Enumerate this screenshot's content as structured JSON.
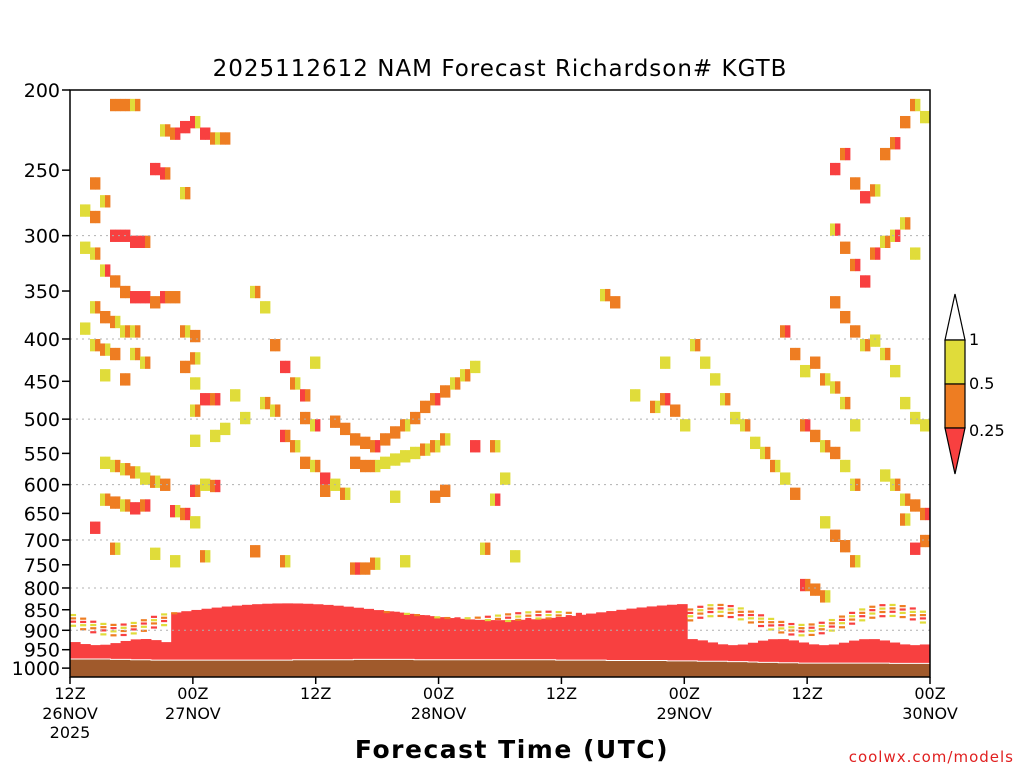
{
  "chart_data": {
    "type": "heatmap",
    "title": "2025112612 NAM Forecast Richardson# KGTB",
    "xlabel": "Forecast Time (UTC)",
    "ylabel": "",
    "watermark": "coolwx.com/models",
    "y_scale": "log",
    "ylim": [
      1025,
      200
    ],
    "xlim_hours": [
      0,
      84
    ],
    "y_ticks": [
      200,
      250,
      300,
      350,
      400,
      450,
      500,
      550,
      600,
      650,
      700,
      750,
      800,
      850,
      900,
      950,
      1000
    ],
    "y_tick_labels": [
      "200",
      "250",
      "300",
      "350",
      "400",
      "450",
      "500",
      "550",
      "600",
      "650",
      "700",
      "750",
      "800",
      "850",
      "900",
      "950",
      "1000"
    ],
    "x_ticks": [
      {
        "hour": 0,
        "time": "12Z",
        "date": "26NOV",
        "year": "2025"
      },
      {
        "hour": 12,
        "time": "00Z",
        "date": "27NOV",
        "year": ""
      },
      {
        "hour": 24,
        "time": "12Z",
        "date": "",
        "year": ""
      },
      {
        "hour": 36,
        "time": "00Z",
        "date": "28NOV",
        "year": ""
      },
      {
        "hour": 48,
        "time": "12Z",
        "date": "",
        "year": ""
      },
      {
        "hour": 60,
        "time": "00Z",
        "date": "29NOV",
        "year": ""
      },
      {
        "hour": 72,
        "time": "12Z",
        "date": "",
        "year": ""
      },
      {
        "hour": 84,
        "time": "00Z",
        "date": "30NOV",
        "year": ""
      }
    ],
    "grid": "dotted horizontal at 300, 400, 500, 600, 700, 800, 900",
    "legend": {
      "placement": "right",
      "boundaries": [
        "1",
        "0.5",
        "0.25"
      ],
      "bins": [
        {
          "range": "0.5 - 1",
          "color": "#e0dc3a"
        },
        {
          "range": "0.25 - 0.5",
          "color": "#ee7d22"
        },
        {
          "range": "< 0.25",
          "color": "#f84040"
        }
      ]
    },
    "colors": {
      "high": "#e0dc3a",
      "mid": "#ee7d22",
      "low": "#f84040",
      "ground": "#a05a2c"
    },
    "surface_pressure": [
      975,
      975,
      975,
      975,
      976,
      976,
      977,
      977,
      978,
      978,
      978,
      978,
      978,
      978,
      978,
      978,
      978,
      978,
      978,
      978,
      978,
      978,
      977,
      977,
      977,
      977,
      977,
      977,
      976,
      976,
      976,
      976,
      976,
      976,
      977,
      977,
      977,
      977,
      977,
      977,
      977,
      977,
      977,
      977,
      977,
      977,
      977,
      977,
      978,
      978,
      978,
      978,
      978,
      979,
      979,
      979,
      979,
      979,
      979,
      980,
      980,
      980,
      981,
      981,
      981,
      982,
      982,
      983,
      984,
      984,
      985,
      985,
      986,
      986,
      986,
      986,
      986,
      986,
      986,
      986,
      986,
      987,
      987,
      987,
      987
    ],
    "cells": [
      [
        4,
        205,
        1,
        1
      ],
      [
        5,
        205,
        1,
        1
      ],
      [
        6,
        205,
        0,
        1
      ],
      [
        9,
        220,
        0,
        1
      ],
      [
        10,
        222,
        1,
        2
      ],
      [
        11,
        218,
        2,
        2
      ],
      [
        12,
        215,
        2,
        0
      ],
      [
        13,
        222,
        2,
        2
      ],
      [
        14,
        225,
        1,
        0
      ],
      [
        15,
        225,
        1,
        1
      ],
      [
        8,
        245,
        2,
        2
      ],
      [
        9,
        248,
        2,
        1
      ],
      [
        2,
        255,
        1,
        1
      ],
      [
        11,
        262,
        0,
        1
      ],
      [
        3,
        268,
        0,
        1
      ],
      [
        1,
        275,
        0,
        0
      ],
      [
        2,
        280,
        1,
        1
      ],
      [
        4,
        295,
        2,
        2
      ],
      [
        5,
        295,
        2,
        2
      ],
      [
        6,
        300,
        2,
        2
      ],
      [
        7,
        300,
        2,
        1
      ],
      [
        1,
        305,
        0,
        0
      ],
      [
        2,
        310,
        0,
        1
      ],
      [
        3,
        325,
        0,
        2
      ],
      [
        4,
        335,
        1,
        1
      ],
      [
        5,
        345,
        1,
        1
      ],
      [
        6,
        350,
        2,
        2
      ],
      [
        7,
        350,
        2,
        2
      ],
      [
        8,
        355,
        1,
        1
      ],
      [
        9,
        350,
        2,
        1
      ],
      [
        10,
        350,
        1,
        1
      ],
      [
        2,
        360,
        0,
        1
      ],
      [
        3,
        370,
        1,
        1
      ],
      [
        4,
        375,
        1,
        0
      ],
      [
        1,
        382,
        0,
        0
      ],
      [
        5,
        385,
        0,
        1
      ],
      [
        6,
        385,
        0,
        1
      ],
      [
        11,
        385,
        1,
        0
      ],
      [
        12,
        390,
        1,
        1
      ],
      [
        2,
        400,
        0,
        1
      ],
      [
        3,
        405,
        1,
        0
      ],
      [
        4,
        410,
        1,
        1
      ],
      [
        6,
        410,
        0,
        1
      ],
      [
        7,
        420,
        0,
        1
      ],
      [
        12,
        415,
        1,
        0
      ],
      [
        11,
        425,
        1,
        1
      ],
      [
        3,
        435,
        0,
        0
      ],
      [
        5,
        440,
        1,
        1
      ],
      [
        12,
        445,
        0,
        0
      ],
      [
        13,
        465,
        2,
        2
      ],
      [
        14,
        465,
        1,
        2
      ],
      [
        12,
        480,
        0,
        1
      ],
      [
        15,
        505,
        0,
        0
      ],
      [
        14,
        515,
        0,
        0
      ],
      [
        12,
        522,
        0,
        0
      ],
      [
        3,
        555,
        0,
        0
      ],
      [
        4,
        560,
        0,
        1
      ],
      [
        5,
        565,
        0,
        1
      ],
      [
        6,
        570,
        1,
        0
      ],
      [
        7,
        580,
        0,
        0
      ],
      [
        8,
        585,
        1,
        0
      ],
      [
        9,
        590,
        1,
        1
      ],
      [
        12,
        600,
        2,
        1
      ],
      [
        13,
        590,
        0,
        0
      ],
      [
        14,
        592,
        1,
        2
      ],
      [
        3,
        615,
        0,
        1
      ],
      [
        4,
        620,
        1,
        1
      ],
      [
        5,
        625,
        0,
        1
      ],
      [
        6,
        630,
        2,
        2
      ],
      [
        7,
        625,
        1,
        2
      ],
      [
        10,
        635,
        2,
        0
      ],
      [
        11,
        640,
        1,
        2
      ],
      [
        12,
        655,
        0,
        0
      ],
      [
        2,
        665,
        2,
        2
      ],
      [
        4,
        705,
        1,
        0
      ],
      [
        8,
        715,
        0,
        0
      ],
      [
        10,
        730,
        0,
        0
      ],
      [
        13,
        720,
        1,
        0
      ],
      [
        18,
        345,
        0,
        1
      ],
      [
        19,
        360,
        0,
        0
      ],
      [
        20,
        400,
        1,
        1
      ],
      [
        21,
        425,
        2,
        2
      ],
      [
        22,
        445,
        1,
        0
      ],
      [
        23,
        460,
        2,
        1
      ],
      [
        24,
        420,
        0,
        0
      ],
      [
        16,
        460,
        0,
        0
      ],
      [
        17,
        490,
        0,
        0
      ],
      [
        19,
        470,
        0,
        1
      ],
      [
        20,
        480,
        0,
        1
      ],
      [
        23,
        490,
        1,
        1
      ],
      [
        24,
        500,
        0,
        2
      ],
      [
        21,
        515,
        2,
        1
      ],
      [
        22,
        530,
        1,
        0
      ],
      [
        23,
        555,
        1,
        1
      ],
      [
        24,
        560,
        0,
        1
      ],
      [
        25,
        580,
        2,
        2
      ],
      [
        25,
        600,
        1,
        1
      ],
      [
        26,
        590,
        0,
        0
      ],
      [
        26,
        495,
        1,
        1
      ],
      [
        27,
        505,
        1,
        1
      ],
      [
        28,
        520,
        1,
        1
      ],
      [
        29,
        525,
        1,
        1
      ],
      [
        30,
        530,
        1,
        2
      ],
      [
        31,
        520,
        1,
        1
      ],
      [
        32,
        510,
        1,
        1
      ],
      [
        33,
        500,
        1,
        0
      ],
      [
        34,
        490,
        1,
        1
      ],
      [
        35,
        475,
        1,
        1
      ],
      [
        36,
        465,
        1,
        2
      ],
      [
        37,
        455,
        1,
        1
      ],
      [
        38,
        445,
        0,
        1
      ],
      [
        39,
        435,
        0,
        1
      ],
      [
        40,
        425,
        0,
        0
      ],
      [
        28,
        555,
        1,
        1
      ],
      [
        29,
        560,
        1,
        1
      ],
      [
        30,
        560,
        1,
        0
      ],
      [
        31,
        555,
        0,
        0
      ],
      [
        32,
        550,
        0,
        0
      ],
      [
        33,
        545,
        0,
        0
      ],
      [
        34,
        540,
        0,
        0
      ],
      [
        35,
        535,
        1,
        0
      ],
      [
        36,
        530,
        1,
        0
      ],
      [
        37,
        520,
        1,
        0
      ],
      [
        27,
        605,
        1,
        0
      ],
      [
        32,
        610,
        0,
        0
      ],
      [
        36,
        610,
        1,
        1
      ],
      [
        37,
        600,
        1,
        1
      ],
      [
        40,
        530,
        2,
        2
      ],
      [
        42,
        530,
        1,
        0
      ],
      [
        43,
        580,
        0,
        0
      ],
      [
        42,
        615,
        0,
        2
      ],
      [
        28,
        745,
        1,
        2
      ],
      [
        29,
        745,
        1,
        1
      ],
      [
        30,
        735,
        1,
        0
      ],
      [
        33,
        730,
        0,
        0
      ],
      [
        41,
        705,
        0,
        1
      ],
      [
        44,
        720,
        0,
        0
      ],
      [
        18,
        710,
        1,
        1
      ],
      [
        21,
        730,
        1,
        0
      ],
      [
        53,
        348,
        0,
        1
      ],
      [
        54,
        355,
        1,
        1
      ],
      [
        59,
        420,
        0,
        0
      ],
      [
        56,
        460,
        0,
        0
      ],
      [
        58,
        475,
        1,
        0
      ],
      [
        59,
        465,
        1,
        2
      ],
      [
        60,
        480,
        1,
        1
      ],
      [
        61,
        500,
        0,
        0
      ],
      [
        62,
        400,
        0,
        1
      ],
      [
        63,
        420,
        0,
        0
      ],
      [
        64,
        440,
        0,
        0
      ],
      [
        65,
        465,
        0,
        1
      ],
      [
        66,
        490,
        0,
        0
      ],
      [
        67,
        500,
        0,
        1
      ],
      [
        68,
        525,
        0,
        0
      ],
      [
        69,
        540,
        0,
        1
      ],
      [
        70,
        560,
        1,
        0
      ],
      [
        71,
        580,
        0,
        0
      ],
      [
        72,
        605,
        1,
        1
      ],
      [
        71,
        385,
        1,
        2
      ],
      [
        72,
        410,
        1,
        1
      ],
      [
        73,
        430,
        0,
        0
      ],
      [
        74,
        420,
        1,
        1
      ],
      [
        75,
        440,
        1,
        0
      ],
      [
        76,
        450,
        0,
        1
      ],
      [
        77,
        470,
        0,
        1
      ],
      [
        78,
        500,
        0,
        0
      ],
      [
        73,
        500,
        1,
        2
      ],
      [
        74,
        515,
        1,
        1
      ],
      [
        75,
        530,
        0,
        1
      ],
      [
        76,
        540,
        1,
        1
      ],
      [
        77,
        560,
        0,
        0
      ],
      [
        78,
        590,
        0,
        1
      ],
      [
        75,
        655,
        0,
        0
      ],
      [
        76,
        680,
        1,
        1
      ],
      [
        77,
        700,
        1,
        1
      ],
      [
        78,
        730,
        1,
        0
      ],
      [
        73,
        780,
        2,
        1
      ],
      [
        74,
        790,
        1,
        1
      ],
      [
        75,
        805,
        1,
        0
      ],
      [
        76,
        245,
        2,
        2
      ],
      [
        77,
        235,
        1,
        2
      ],
      [
        78,
        255,
        1,
        1
      ],
      [
        79,
        265,
        2,
        2
      ],
      [
        80,
        260,
        1,
        0
      ],
      [
        81,
        235,
        1,
        1
      ],
      [
        82,
        228,
        1,
        2
      ],
      [
        83,
        215,
        1,
        1
      ],
      [
        84,
        205,
        1,
        0
      ],
      [
        85,
        212,
        0,
        0
      ],
      [
        76,
        290,
        0,
        2
      ],
      [
        77,
        305,
        1,
        1
      ],
      [
        78,
        320,
        1,
        2
      ],
      [
        79,
        335,
        2,
        2
      ],
      [
        80,
        310,
        1,
        2
      ],
      [
        81,
        300,
        0,
        1
      ],
      [
        82,
        295,
        0,
        2
      ],
      [
        83,
        285,
        0,
        1
      ],
      [
        84,
        310,
        0,
        0
      ],
      [
        76,
        355,
        1,
        1
      ],
      [
        77,
        370,
        1,
        1
      ],
      [
        78,
        385,
        1,
        1
      ],
      [
        79,
        400,
        0,
        1
      ],
      [
        80,
        395,
        0,
        0
      ],
      [
        81,
        410,
        0,
        1
      ],
      [
        82,
        430,
        0,
        0
      ],
      [
        83,
        470,
        0,
        0
      ],
      [
        84,
        490,
        0,
        0
      ],
      [
        85,
        500,
        0,
        0
      ],
      [
        81,
        575,
        0,
        0
      ],
      [
        82,
        590,
        0,
        1
      ],
      [
        83,
        615,
        0,
        1
      ],
      [
        84,
        625,
        1,
        1
      ],
      [
        85,
        640,
        1,
        2
      ],
      [
        85,
        690,
        1,
        1
      ],
      [
        84,
        705,
        2,
        2
      ],
      [
        83,
        650,
        1,
        0
      ]
    ]
  }
}
